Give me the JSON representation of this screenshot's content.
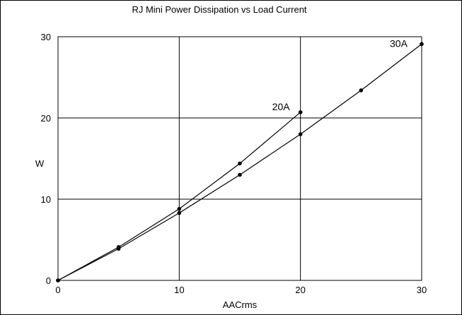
{
  "chart_data": {
    "type": "line",
    "title": "RJ Mini Power Dissipation vs Load Current",
    "xlabel": "AACrms",
    "ylabel": "W",
    "xlim": [
      0,
      30
    ],
    "ylim": [
      0,
      30
    ],
    "x_ticks": [
      0,
      10,
      20,
      30
    ],
    "y_ticks": [
      0,
      10,
      20,
      30
    ],
    "grid": true,
    "series": [
      {
        "name": "20A",
        "x": [
          0,
          5,
          10,
          15,
          20
        ],
        "y": [
          0,
          4.1,
          8.8,
          14.4,
          20.7
        ]
      },
      {
        "name": "30A",
        "x": [
          0,
          5,
          10,
          15,
          20,
          25,
          30
        ],
        "y": [
          0,
          3.9,
          8.3,
          13.0,
          18.0,
          23.4,
          29.1
        ]
      }
    ]
  }
}
